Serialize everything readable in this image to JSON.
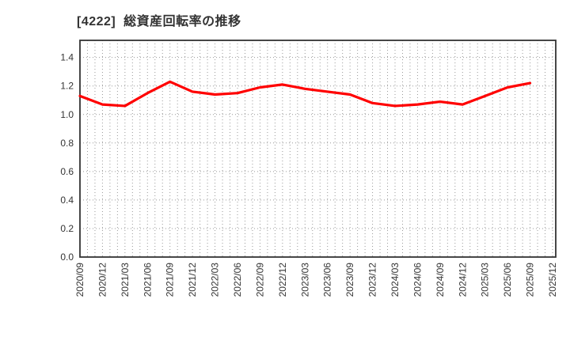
{
  "page": {
    "background": "#ffffff"
  },
  "chart_data": {
    "type": "line",
    "title": "[4222]  総資産回転率の推移",
    "stock_code": "4222",
    "metric_name": "総資産回転率",
    "categories": [
      "2020/09",
      "2020/12",
      "2021/03",
      "2021/06",
      "2021/09",
      "2021/12",
      "2022/03",
      "2022/06",
      "2022/09",
      "2022/12",
      "2023/03",
      "2023/06",
      "2023/09",
      "2023/12",
      "2024/03",
      "2024/06",
      "2024/09",
      "2024/12",
      "2025/03",
      "2025/06",
      "2025/09",
      "2025/12"
    ],
    "series": [
      {
        "name": "総資産回転率",
        "color": "#ff0000",
        "values": [
          1.13,
          1.07,
          1.06,
          1.15,
          1.23,
          1.16,
          1.14,
          1.15,
          1.19,
          1.21,
          1.18,
          1.16,
          1.14,
          1.08,
          1.06,
          1.07,
          1.09,
          1.07,
          1.13,
          1.19,
          1.22,
          null
        ]
      }
    ],
    "xlabel": "",
    "ylabel": "",
    "y_ticks": [
      "0.0",
      "0.2",
      "0.4",
      "0.6",
      "0.8",
      "1.0",
      "1.2",
      "1.4"
    ],
    "ylim": [
      0.0,
      1.52
    ],
    "grid": true,
    "grid_style": "dotted",
    "vertical_grid_per_category": 3,
    "legend": "none",
    "frame_color": "#333333",
    "grid_color": "#999999",
    "tick_color": "#333333"
  }
}
